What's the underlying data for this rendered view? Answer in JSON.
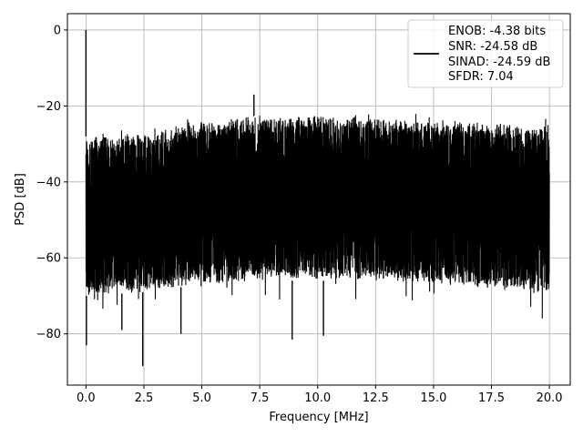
{
  "chart_data": {
    "type": "line",
    "title": "",
    "xlabel": "Frequency [MHz]",
    "ylabel": "PSD [dB]",
    "xlim": [
      -0.8,
      20.9
    ],
    "ylim": [
      -93.5,
      4.3
    ],
    "xticks": [
      0.0,
      2.5,
      5.0,
      7.5,
      10.0,
      12.5,
      15.0,
      17.5,
      20.0
    ],
    "xtick_labels": [
      "0.0",
      "2.5",
      "5.0",
      "7.5",
      "10.0",
      "12.5",
      "15.0",
      "17.5",
      "20.0"
    ],
    "yticks": [
      0,
      -20,
      -40,
      -60,
      -80
    ],
    "ytick_labels": [
      "0",
      "−20",
      "−40",
      "−60",
      "−80"
    ],
    "grid": true,
    "legend_position": "top-right",
    "series": [
      {
        "color": "#000000",
        "description": "dense noise floor PSD",
        "x_range": [
          0.0,
          20.0
        ],
        "upper_envelope_db": {
          "x": [
            0.0,
            2.5,
            5.0,
            7.5,
            10.0,
            12.5,
            15.0,
            17.5,
            20.0
          ],
          "y": [
            -28,
            -27,
            -24,
            -22.5,
            -22.5,
            -23,
            -23.5,
            -24.5,
            -25
          ]
        },
        "lower_envelope_db": {
          "x": [
            0.0,
            2.5,
            5.0,
            7.5,
            10.0,
            12.5,
            15.0,
            17.5,
            20.0
          ],
          "y": [
            -70,
            -69,
            -67,
            -66,
            -66,
            -66,
            -67,
            -68,
            -69
          ]
        },
        "spikes": [
          {
            "x": 0.0,
            "y": 0.0
          },
          {
            "x": 0.02,
            "y": -83
          },
          {
            "x": 7.25,
            "y": -17
          },
          {
            "x": 2.45,
            "y": -88.5
          },
          {
            "x": 8.9,
            "y": -81.5
          },
          {
            "x": 10.25,
            "y": -80.5
          },
          {
            "x": 4.1,
            "y": -80
          },
          {
            "x": 1.55,
            "y": -79
          }
        ]
      }
    ],
    "legend": {
      "lines": [
        "ENOB: -4.38 bits",
        "SNR: -24.58 dB",
        "SINAD: -24.59 dB",
        "SFDR: 7.04"
      ]
    }
  }
}
